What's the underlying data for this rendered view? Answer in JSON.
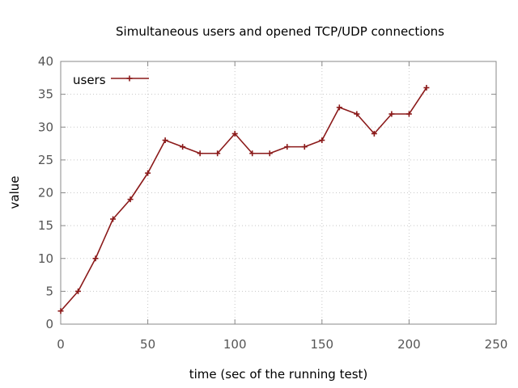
{
  "chart_data": {
    "type": "line",
    "title": "Simultaneous users and opened TCP/UDP connections",
    "xlabel": "time (sec of the running test)",
    "ylabel": "value",
    "xlim": [
      0,
      250
    ],
    "ylim": [
      0,
      40
    ],
    "xticks": [
      0,
      50,
      100,
      150,
      200,
      250
    ],
    "yticks": [
      0,
      5,
      10,
      15,
      20,
      25,
      30,
      35,
      40
    ],
    "grid": true,
    "legend_position": "top-left",
    "series": [
      {
        "name": "users",
        "color": "#8b1a1a",
        "marker": "plus",
        "x": [
          0,
          10,
          20,
          30,
          40,
          50,
          60,
          70,
          80,
          90,
          100,
          110,
          120,
          130,
          140,
          150,
          160,
          170,
          180,
          190,
          200,
          210
        ],
        "y": [
          2,
          5,
          10,
          16,
          19,
          23,
          28,
          27,
          26,
          26,
          29,
          26,
          26,
          27,
          27,
          28,
          33,
          32,
          29,
          32,
          32,
          36
        ]
      }
    ]
  }
}
